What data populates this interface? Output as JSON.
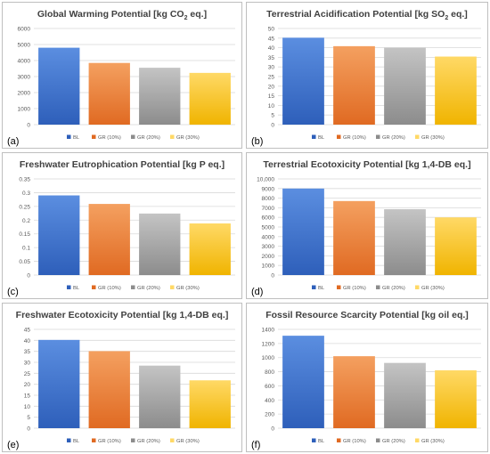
{
  "legend": [
    "BL",
    "GR (10%)",
    "GR (20%)",
    "GR (30%)"
  ],
  "colors": {
    "bl_top": "#5b8ee0",
    "bl_bottom": "#2e5fba",
    "gr10_top": "#f4a060",
    "gr10_bottom": "#e06a22",
    "gr20_top": "#c4c4c4",
    "gr20_bottom": "#8c8c8c",
    "gr30_top": "#ffd966",
    "gr30_bottom": "#f0b400",
    "panel_border": "#bfbfbf",
    "grid": "#d9d9d9",
    "axis_text": "#595959"
  },
  "chart_data": [
    {
      "type": "bar",
      "title": "Global Warming Potential [kg CO",
      "title_sub": "2",
      "title_tail": " eq.]",
      "panel_label": "(a)",
      "categories": [
        "BL",
        "GR (10%)",
        "GR (20%)",
        "GR (30%)"
      ],
      "values": [
        4800,
        3850,
        3550,
        3230
      ],
      "ylim": [
        0,
        6000
      ],
      "yticks": [
        "0",
        "1000",
        "2000",
        "3000",
        "4000",
        "5000",
        "6000"
      ],
      "xlabel": "",
      "ylabel": "",
      "grid": true,
      "legend_position": "bottom"
    },
    {
      "type": "bar",
      "title": "Terrestrial Acidification Potential [kg SO",
      "title_sub": "2",
      "title_tail": " eq.]",
      "panel_label": "(b)",
      "categories": [
        "BL",
        "GR (10%)",
        "GR (20%)",
        "GR (30%)"
      ],
      "values": [
        45.2,
        40.8,
        40.1,
        35.4
      ],
      "ylim": [
        0,
        50
      ],
      "yticks": [
        "0",
        "5",
        "10",
        "15",
        "20",
        "25",
        "30",
        "35",
        "40",
        "45",
        "50"
      ],
      "xlabel": "",
      "ylabel": "",
      "grid": true,
      "legend_position": "bottom"
    },
    {
      "type": "bar",
      "title": "Freshwater Eutrophication Potential [kg P eq.]",
      "title_sub": "",
      "title_tail": "",
      "panel_label": "(c)",
      "categories": [
        "BL",
        "GR (10%)",
        "GR (20%)",
        "GR (30%)"
      ],
      "values": [
        0.29,
        0.259,
        0.224,
        0.188
      ],
      "ylim": [
        0,
        0.35
      ],
      "yticks": [
        "0",
        "0.05",
        "0.1",
        "0.15",
        "0.2",
        "0.25",
        "0.3",
        "0.35"
      ],
      "xlabel": "",
      "ylabel": "",
      "grid": true,
      "legend_position": "bottom"
    },
    {
      "type": "bar",
      "title": "Terrestrial Ecotoxicity Potential [kg 1,4-DB eq.]",
      "title_sub": "",
      "title_tail": "",
      "panel_label": "(d)",
      "categories": [
        "BL",
        "GR (10%)",
        "GR (20%)",
        "GR (30%)"
      ],
      "values": [
        9000,
        7700,
        6850,
        6000
      ],
      "ylim": [
        0,
        10000
      ],
      "yticks": [
        "0",
        "1000",
        "2000",
        "3000",
        "4000",
        "5000",
        "6000",
        "7000",
        "8000",
        "9000",
        "10,000"
      ],
      "xlabel": "",
      "ylabel": "",
      "grid": true,
      "legend_position": "bottom"
    },
    {
      "type": "bar",
      "title": "Freshwater Ecotoxicity Potential [kg 1,4-DB eq.]",
      "title_sub": "",
      "title_tail": "",
      "panel_label": "(e)",
      "categories": [
        "BL",
        "GR (10%)",
        "GR (20%)",
        "GR (30%)"
      ],
      "values": [
        40.2,
        35.1,
        28.5,
        21.8
      ],
      "ylim": [
        0,
        45
      ],
      "yticks": [
        "0",
        "5",
        "10",
        "15",
        "20",
        "25",
        "30",
        "35",
        "40",
        "45"
      ],
      "xlabel": "",
      "ylabel": "",
      "grid": true,
      "legend_position": "bottom"
    },
    {
      "type": "bar",
      "title": "Fossil Resource Scarcity Potential [kg oil eq.]",
      "title_sub": "",
      "title_tail": "",
      "panel_label": "(f)",
      "categories": [
        "BL",
        "GR (10%)",
        "GR (20%)",
        "GR (30%)"
      ],
      "values": [
        1310,
        1020,
        925,
        820
      ],
      "ylim": [
        0,
        1400
      ],
      "yticks": [
        "0",
        "200",
        "400",
        "600",
        "800",
        "1000",
        "1200",
        "1400"
      ],
      "xlabel": "",
      "ylabel": "",
      "grid": true,
      "legend_position": "bottom"
    }
  ]
}
